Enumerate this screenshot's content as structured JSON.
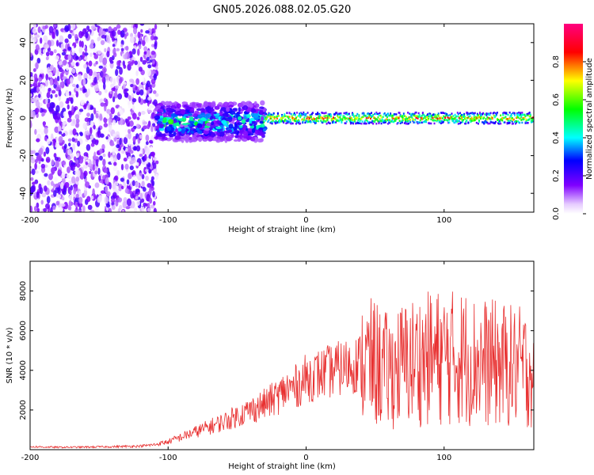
{
  "chart_data": [
    {
      "type": "heatmap",
      "title": "GN05.2026.088.02.05.G20",
      "xlabel": "Height of straight line (km)",
      "ylabel": "Frequency (Hz)",
      "xlim": [
        -200,
        165
      ],
      "ylim": [
        -50,
        50
      ],
      "xticks": [
        -200,
        -100,
        0,
        100
      ],
      "yticks": [
        -40,
        -20,
        0,
        20,
        40
      ],
      "colorbar": {
        "label": "Normalized spectral amplitude",
        "range": [
          0,
          1
        ],
        "ticks": [
          "0.0",
          "0.2",
          "0.4",
          "0.6",
          "0.8"
        ]
      },
      "description_regions": [
        {
          "x_range": [
            -200,
            -108
          ],
          "freq_range": [
            -50,
            50
          ],
          "amplitude": 0.1
        },
        {
          "x_range": [
            -108,
            -30
          ],
          "freq_range": [
            -12,
            8
          ],
          "amplitude": 0.25
        },
        {
          "x_range": [
            -30,
            165
          ],
          "freq_range": [
            -3,
            3
          ],
          "amplitude": 0.9
        }
      ]
    },
    {
      "type": "line",
      "xlabel": "Height of straight line (km)",
      "ylabel": "SNR (10 * v/v)",
      "xlim": [
        -200,
        165
      ],
      "ylim": [
        0,
        9500
      ],
      "xticks": [
        -200,
        -100,
        0,
        100
      ],
      "yticks": [
        2000,
        4000,
        6000,
        8000
      ],
      "color": "#e83030",
      "series": [
        {
          "x": [
            -200,
            -180,
            -160,
            -140,
            -120,
            -110,
            -100,
            -90,
            -80,
            -70,
            -60,
            -50,
            -40,
            -30,
            -20,
            -15,
            -10,
            -5,
            0,
            10,
            20,
            30,
            40,
            50,
            60,
            65,
            70,
            80,
            90,
            100,
            110,
            115,
            120,
            130,
            140,
            150,
            160,
            165
          ],
          "y": [
            150,
            120,
            130,
            150,
            180,
            250,
            400,
            650,
            900,
            1150,
            1400,
            1700,
            2000,
            2300,
            2700,
            3000,
            3100,
            3300,
            3600,
            3800,
            4000,
            4200,
            4400,
            4350,
            3900,
            4100,
            4300,
            4500,
            4600,
            4700,
            4600,
            4700,
            4500,
            4400,
            4300,
            4200,
            4100,
            4000
          ]
        }
      ]
    }
  ]
}
